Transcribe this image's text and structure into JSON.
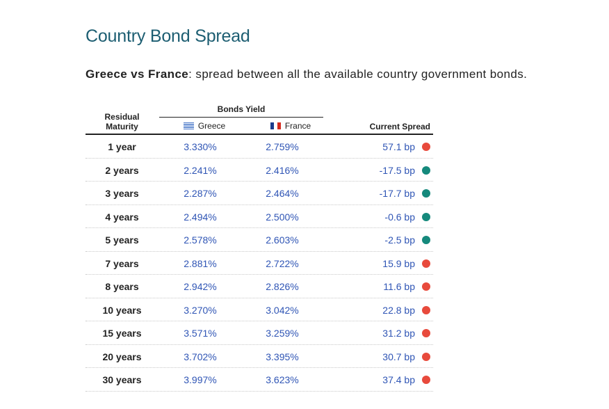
{
  "page": {
    "title": "Country Bond Spread",
    "subtitle_bold": "Greece vs France",
    "subtitle_rest": ": spread between all the available country government bonds."
  },
  "table": {
    "header": {
      "maturity_line1": "Residual",
      "maturity_line2": "Maturity",
      "bonds_yield": "Bonds Yield",
      "greece": "Greece",
      "france": "France",
      "current_spread": "Current Spread"
    },
    "colors": {
      "positive": "#e84a3c",
      "negative": "#15897c"
    },
    "rows": [
      {
        "maturity": "1 year",
        "greece": "3.330%",
        "france": "2.759%",
        "spread": "57.1 bp",
        "status": "positive"
      },
      {
        "maturity": "2 years",
        "greece": "2.241%",
        "france": "2.416%",
        "spread": "-17.5 bp",
        "status": "negative"
      },
      {
        "maturity": "3 years",
        "greece": "2.287%",
        "france": "2.464%",
        "spread": "-17.7 bp",
        "status": "negative"
      },
      {
        "maturity": "4 years",
        "greece": "2.494%",
        "france": "2.500%",
        "spread": "-0.6 bp",
        "status": "negative"
      },
      {
        "maturity": "5 years",
        "greece": "2.578%",
        "france": "2.603%",
        "spread": "-2.5 bp",
        "status": "negative"
      },
      {
        "maturity": "7 years",
        "greece": "2.881%",
        "france": "2.722%",
        "spread": "15.9 bp",
        "status": "positive"
      },
      {
        "maturity": "8 years",
        "greece": "2.942%",
        "france": "2.826%",
        "spread": "11.6 bp",
        "status": "positive"
      },
      {
        "maturity": "10 years",
        "greece": "3.270%",
        "france": "3.042%",
        "spread": "22.8 bp",
        "status": "positive"
      },
      {
        "maturity": "15 years",
        "greece": "3.571%",
        "france": "3.259%",
        "spread": "31.2 bp",
        "status": "positive"
      },
      {
        "maturity": "20 years",
        "greece": "3.702%",
        "france": "3.395%",
        "spread": "30.7 bp",
        "status": "positive"
      },
      {
        "maturity": "30 years",
        "greece": "3.997%",
        "france": "3.623%",
        "spread": "37.4 bp",
        "status": "positive"
      }
    ]
  }
}
